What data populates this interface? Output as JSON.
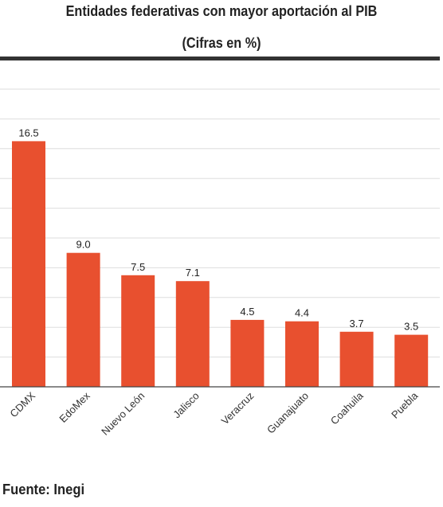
{
  "header": {
    "title": "Entidades  federativas con mayor aportación al PIB",
    "subtitle": "(Cifras en %)"
  },
  "footer": {
    "source": "Fuente: Inegi"
  },
  "colors": {
    "bar": "#e8502f",
    "grid": "#dddddd",
    "axis": "#444444",
    "rule": "#333333"
  },
  "chart_data": {
    "type": "bar",
    "title": "Entidades  federativas con mayor aportación al PIB",
    "subtitle": "(Cifras en %)",
    "categories": [
      "CDMX",
      "EdoMex",
      "Nuevo León",
      "Jalisco",
      "Veracruz",
      "Guanajuato",
      "Coahuila",
      "Puebla"
    ],
    "values": [
      16.5,
      9.0,
      7.5,
      7.1,
      4.5,
      4.4,
      3.7,
      3.5
    ],
    "value_labels": [
      "16.5",
      "9.0",
      "7.5",
      "7.1",
      "4.5",
      "4.4",
      "3.7",
      "3.5"
    ],
    "xlabel": "",
    "ylabel": "",
    "ylim": [
      0,
      20
    ],
    "grid": true,
    "y_axis_labels_shown": false,
    "legend": "none"
  }
}
